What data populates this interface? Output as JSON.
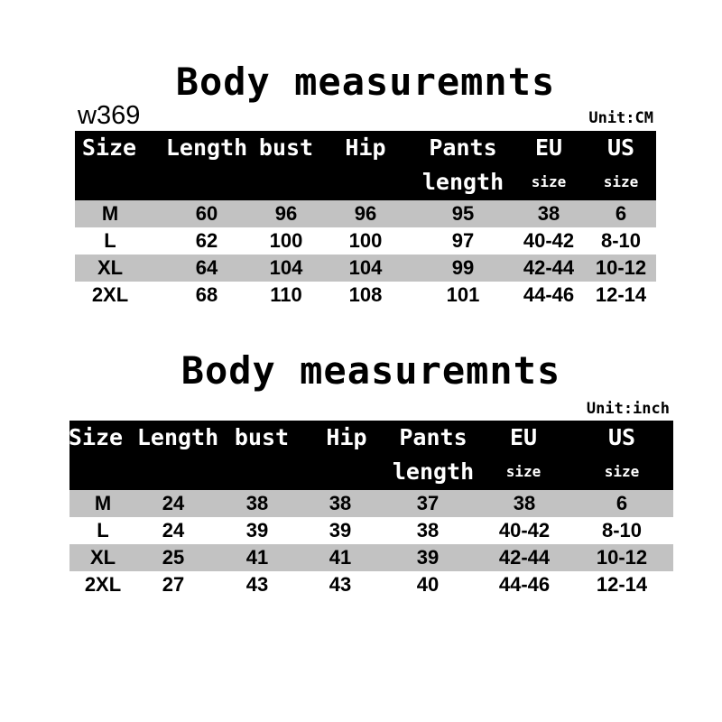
{
  "tables": [
    {
      "title": "Body measuremnts",
      "code": "w369",
      "unit": "Unit:CM",
      "header_top": [
        "Size",
        "Length",
        "bust",
        "Hip",
        "Pants",
        "EU",
        "US"
      ],
      "header_bottom": [
        "",
        "",
        "",
        "",
        "length",
        "size",
        "size"
      ],
      "rows": [
        [
          "M",
          "60",
          "96",
          "96",
          "95",
          "38",
          "6"
        ],
        [
          "L",
          "62",
          "100",
          "100",
          "97",
          "40-42",
          "8-10"
        ],
        [
          "XL",
          "64",
          "104",
          "104",
          "99",
          "42-44",
          "10-12"
        ],
        [
          "2XL",
          "68",
          "110",
          "108",
          "101",
          "44-46",
          "12-14"
        ]
      ]
    },
    {
      "title": "Body measuremnts",
      "unit": "Unit:inch",
      "header_top": [
        "Size",
        "Length",
        "bust",
        "Hip",
        "Pants",
        "EU",
        "US"
      ],
      "header_bottom": [
        "",
        "",
        "",
        "",
        "length",
        "size",
        "size"
      ],
      "rows": [
        [
          "M",
          "24",
          "38",
          "38",
          "37",
          "38",
          "6"
        ],
        [
          "L",
          "24",
          "39",
          "39",
          "38",
          "40-42",
          "8-10"
        ],
        [
          "XL",
          "25",
          "41",
          "41",
          "39",
          "42-44",
          "10-12"
        ],
        [
          "2XL",
          "27",
          "43",
          "43",
          "40",
          "44-46",
          "12-14"
        ]
      ]
    }
  ],
  "colors": {
    "header_bg": "#000000",
    "header_text": "#ffffff",
    "stripe": "#c2c2c2"
  }
}
